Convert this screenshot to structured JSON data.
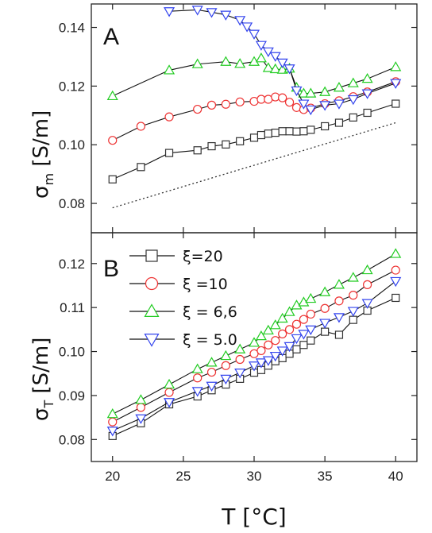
{
  "chart_data": [
    {
      "type": "line",
      "panel_label": "A",
      "ylabel_main": "σ",
      "ylabel_sub": "m",
      "ylabel_unit": " [S/m]",
      "ylim": [
        0.07,
        0.148
      ],
      "yticks": [
        "0.08",
        "0.10",
        "0.12",
        "0.14"
      ],
      "ytick_values": [
        0.08,
        0.1,
        0.12,
        0.14
      ],
      "xlim": [
        18.5,
        41.5
      ],
      "series": [
        {
          "marker": "square",
          "color": "#333333",
          "x": [
            20,
            22,
            24,
            26,
            27,
            28,
            29,
            30,
            30.5,
            31,
            31.5,
            32,
            32.5,
            33,
            33.5,
            34,
            35,
            36,
            37,
            38,
            40
          ],
          "y": [
            0.0882,
            0.0924,
            0.0972,
            0.0981,
            0.0995,
            0.1001,
            0.1012,
            0.1024,
            0.1033,
            0.1038,
            0.1041,
            0.1046,
            0.1046,
            0.1045,
            0.1046,
            0.1051,
            0.1063,
            0.1075,
            0.1093,
            0.1109,
            0.114
          ]
        },
        {
          "marker": "circle",
          "color": "#ee3333",
          "x": [
            20,
            22,
            24,
            26,
            27,
            28,
            29,
            30,
            30.5,
            31,
            31.5,
            32,
            32.5,
            33,
            33.5,
            34,
            35,
            36,
            37,
            38,
            40
          ],
          "y": [
            0.1015,
            0.1063,
            0.1095,
            0.1121,
            0.1135,
            0.1138,
            0.1146,
            0.1148,
            0.1155,
            0.1155,
            0.1163,
            0.116,
            0.1145,
            0.1127,
            0.112,
            0.1125,
            0.114,
            0.115,
            0.1164,
            0.118,
            0.1215
          ]
        },
        {
          "marker": "triangle-up",
          "color": "#22cc22",
          "x": [
            20,
            24,
            26,
            28,
            29,
            30,
            30.5,
            31,
            31.5,
            32,
            32.5,
            33,
            33.5,
            34,
            35,
            36,
            37,
            38,
            40
          ],
          "y": [
            0.1166,
            0.1254,
            0.1275,
            0.1283,
            0.1276,
            0.1283,
            0.1295,
            0.1262,
            0.1258,
            0.1256,
            0.126,
            0.1195,
            0.1175,
            0.1175,
            0.118,
            0.1195,
            0.121,
            0.1225,
            0.1265
          ]
        },
        {
          "marker": "triangle-down",
          "color": "#3344ee",
          "x": [
            24,
            26,
            27,
            28,
            29,
            29.5,
            30,
            30.5,
            31,
            31.5,
            32,
            32.5,
            33,
            33.5,
            34,
            35,
            36,
            37,
            38,
            40
          ],
          "y": [
            0.1455,
            0.146,
            0.1452,
            0.1443,
            0.1425,
            0.1403,
            0.1378,
            0.134,
            0.1318,
            0.1302,
            0.128,
            0.126,
            0.1185,
            0.114,
            0.112,
            0.1135,
            0.114,
            0.1155,
            0.1175,
            0.121
          ]
        },
        {
          "marker": "none",
          "color": "#333333",
          "dash": true,
          "x": [
            20,
            40
          ],
          "y": [
            0.0785,
            0.1075
          ]
        }
      ]
    },
    {
      "type": "line",
      "panel_label": "B",
      "ylabel_main": "σ",
      "ylabel_sub": "T",
      "ylabel_unit": " [S/m]",
      "ylim": [
        0.075,
        0.127
      ],
      "yticks": [
        "0.08",
        "0.09",
        "0.10",
        "0.11",
        "0.12"
      ],
      "ytick_values": [
        0.08,
        0.09,
        0.1,
        0.11,
        0.12
      ],
      "xlim": [
        18.5,
        41.5
      ],
      "xticks": [
        "20",
        "25",
        "30",
        "35",
        "40"
      ],
      "xtick_values": [
        20,
        25,
        30,
        35,
        40
      ],
      "xlabel": "T [°C]",
      "legend": [
        {
          "label": "ξ=20",
          "marker": "square",
          "color": "#333333"
        },
        {
          "label": "ξ =10",
          "marker": "circle",
          "color": "#ee3333"
        },
        {
          "label": "ξ = 6,6",
          "marker": "triangle-up",
          "color": "#22cc22"
        },
        {
          "label": "ξ = 5.0",
          "marker": "triangle-down",
          "color": "#3344ee"
        }
      ],
      "series": [
        {
          "marker": "square",
          "color": "#333333",
          "x": [
            20,
            22,
            24,
            26,
            27,
            28,
            29,
            30,
            30.5,
            31,
            31.5,
            32,
            32.5,
            33,
            33.5,
            34,
            35,
            36,
            37,
            38,
            40
          ],
          "y": [
            0.0808,
            0.0837,
            0.088,
            0.0898,
            0.0912,
            0.0925,
            0.0938,
            0.0952,
            0.0958,
            0.0968,
            0.0978,
            0.0985,
            0.0995,
            0.1005,
            0.1015,
            0.1025,
            0.1045,
            0.1038,
            0.1072,
            0.1093,
            0.1122
          ]
        },
        {
          "marker": "circle",
          "color": "#ee3333",
          "x": [
            20,
            22,
            24,
            26,
            27,
            28,
            29,
            30,
            30.5,
            31,
            31.5,
            32,
            32.5,
            33,
            33.5,
            34,
            35,
            36,
            37,
            38,
            40
          ],
          "y": [
            0.084,
            0.0873,
            0.0907,
            0.094,
            0.0953,
            0.0968,
            0.0982,
            0.0995,
            0.1002,
            0.1015,
            0.1025,
            0.104,
            0.105,
            0.1062,
            0.1073,
            0.1085,
            0.1098,
            0.1115,
            0.1128,
            0.1152,
            0.1185
          ]
        },
        {
          "marker": "triangle-up",
          "color": "#22cc22",
          "x": [
            20,
            22,
            24,
            26,
            27,
            28,
            29,
            30,
            30.5,
            31,
            31.5,
            32,
            32.5,
            33,
            33.5,
            34,
            35,
            36,
            37,
            38,
            40
          ],
          "y": [
            0.0858,
            0.089,
            0.0925,
            0.096,
            0.0975,
            0.099,
            0.1005,
            0.102,
            0.1035,
            0.1048,
            0.106,
            0.1075,
            0.109,
            0.1105,
            0.1112,
            0.112,
            0.1135,
            0.1152,
            0.1168,
            0.1185,
            0.1222
          ]
        },
        {
          "marker": "triangle-down",
          "color": "#3344ee",
          "x": [
            20,
            22,
            24,
            26,
            27,
            28,
            29,
            30,
            30.5,
            31,
            31.5,
            32,
            32.5,
            33,
            33.5,
            34,
            35,
            36,
            37,
            38,
            40
          ],
          "y": [
            0.082,
            0.0848,
            0.0885,
            0.091,
            0.0922,
            0.0938,
            0.0952,
            0.0968,
            0.0975,
            0.098,
            0.099,
            0.1002,
            0.1012,
            0.103,
            0.104,
            0.105,
            0.1065,
            0.1078,
            0.1092,
            0.111,
            0.116
          ]
        }
      ]
    }
  ]
}
